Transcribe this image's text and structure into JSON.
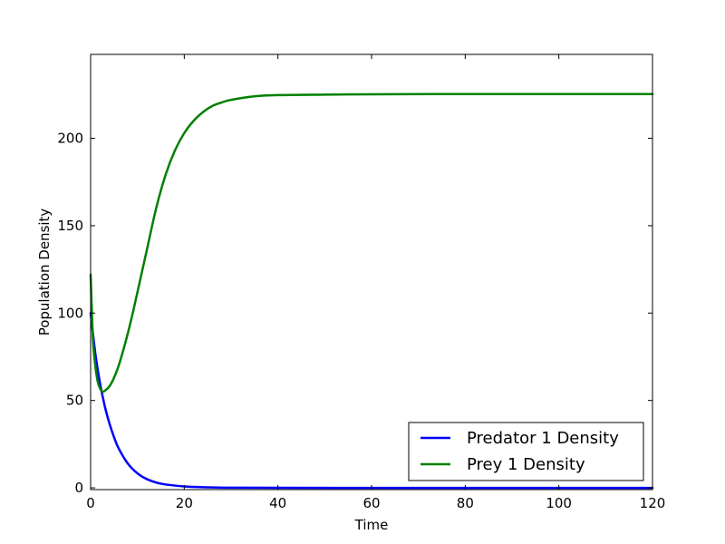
{
  "chart_data": {
    "type": "line",
    "title": "",
    "xlabel": "Time",
    "ylabel": "Population Density",
    "xlim": [
      0,
      120
    ],
    "ylim": [
      -1,
      248
    ],
    "xticks": [
      0,
      20,
      40,
      60,
      80,
      100,
      120
    ],
    "yticks": [
      0,
      50,
      100,
      150,
      200
    ],
    "grid": false,
    "legend_position": "bottom-right",
    "series": [
      {
        "name": "Predator 1 Density",
        "color": "#0000ff",
        "x": [
          0,
          1,
          2,
          3,
          4,
          5,
          6,
          8,
          10,
          12,
          15,
          20,
          25,
          30,
          40,
          60,
          80,
          100,
          120
        ],
        "y": [
          100,
          77,
          60,
          47,
          37,
          29,
          22.5,
          13.7,
          8.3,
          5.0,
          2.4,
          0.8,
          0.3,
          0.1,
          0.01,
          0,
          0,
          0,
          0
        ]
      },
      {
        "name": "Prey 1 Density",
        "color": "#008000",
        "x": [
          0,
          0.5,
          1,
          1.5,
          2,
          2.5,
          3,
          4,
          5,
          6,
          7,
          8,
          9,
          10,
          12,
          14,
          16,
          18,
          20,
          22,
          24,
          26,
          28,
          30,
          35,
          40,
          50,
          60,
          80,
          100,
          120
        ],
        "y": [
          122,
          85,
          70,
          61,
          57,
          55,
          55.5,
          58,
          63,
          70,
          79,
          89,
          100,
          112,
          136,
          160,
          179,
          193,
          203,
          210,
          215,
          218.5,
          220.5,
          222,
          224,
          224.7,
          225,
          225.2,
          225.3,
          225.3,
          225.3
        ]
      }
    ]
  }
}
